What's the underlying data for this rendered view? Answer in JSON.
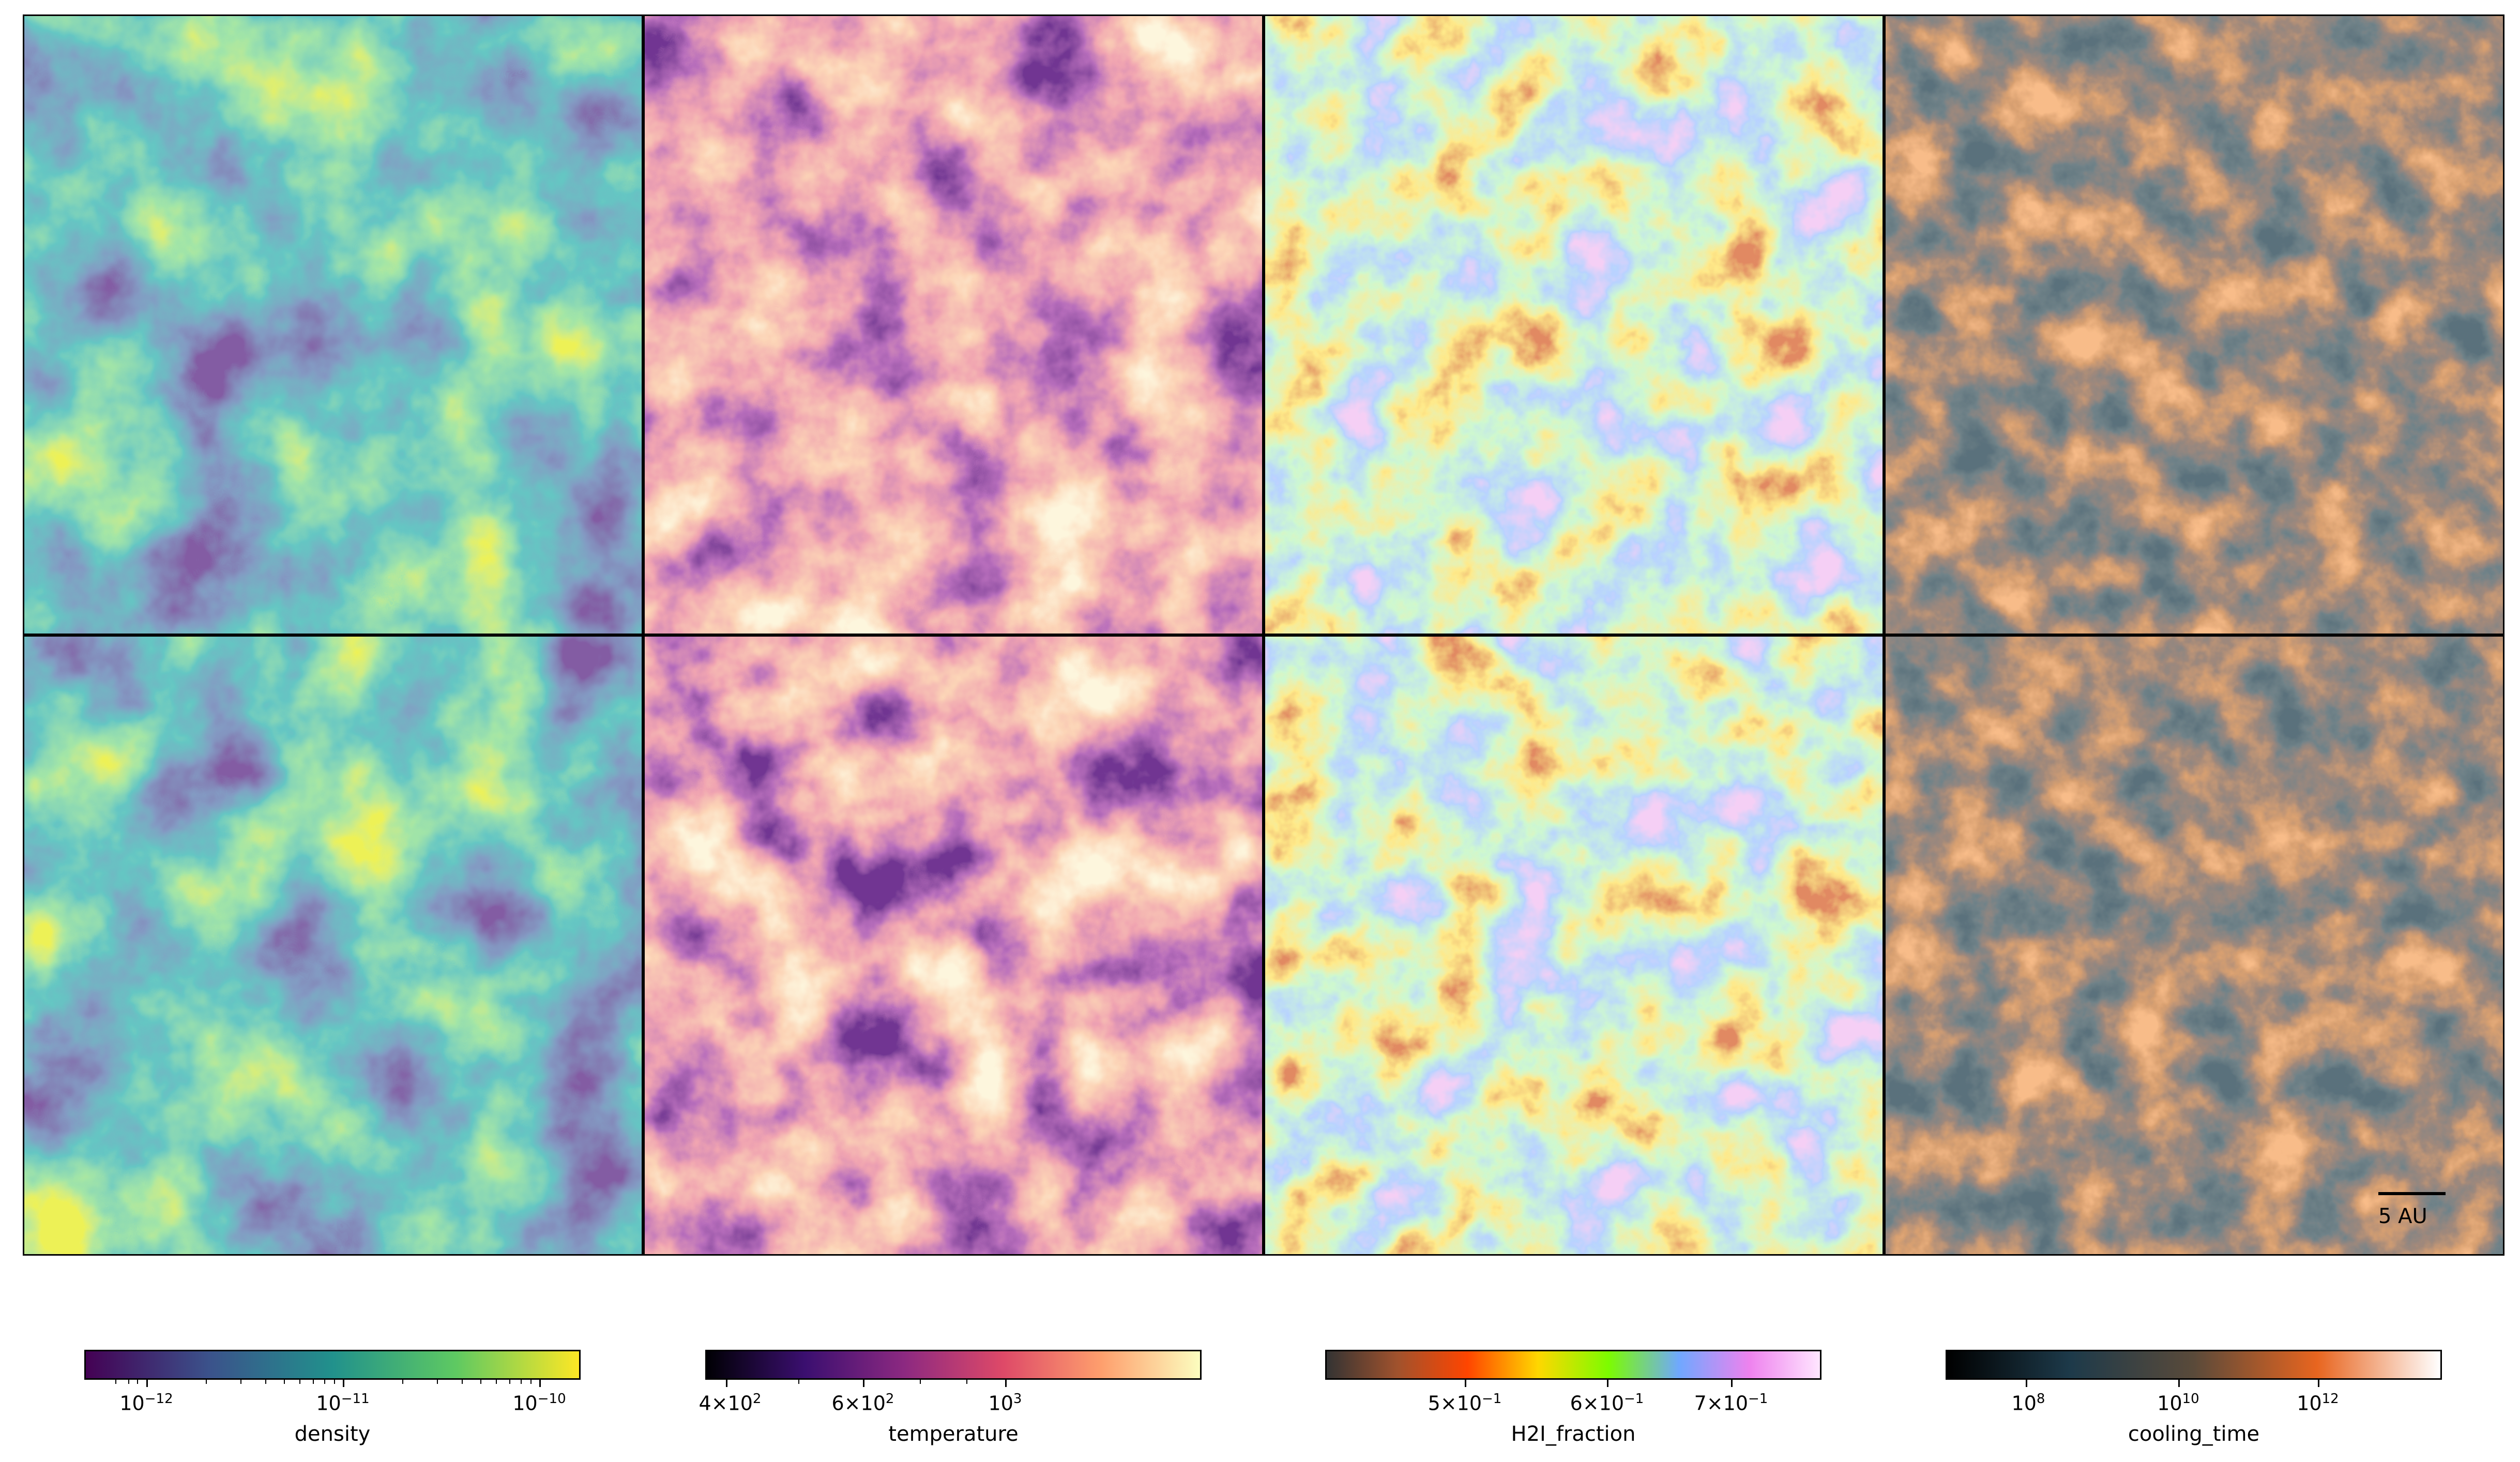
{
  "panels": [
    {
      "row": 0,
      "field": "density",
      "colormap": "viridis"
    },
    {
      "row": 0,
      "field": "temperature",
      "colormap": "magma"
    },
    {
      "row": 0,
      "field": "H2I_fraction",
      "colormap": "gist_ncar_r"
    },
    {
      "row": 0,
      "field": "cooling_time",
      "colormap": "cooling"
    },
    {
      "row": 1,
      "field": "density",
      "colormap": "viridis"
    },
    {
      "row": 1,
      "field": "temperature",
      "colormap": "magma"
    },
    {
      "row": 1,
      "field": "H2I_fraction",
      "colormap": "gist_ncar_r"
    },
    {
      "row": 1,
      "field": "cooling_time",
      "colormap": "cooling"
    }
  ],
  "scalebar": {
    "label": "5 AU"
  },
  "colorbars": [
    {
      "title": "density",
      "ticks": [
        "10^-12",
        "10^-11",
        "10^-10"
      ],
      "colors": [
        "#440154",
        "#3b528b",
        "#21918c",
        "#5ec962",
        "#fde725"
      ]
    },
    {
      "title": "temperature",
      "ticks": [
        "4×10^2",
        "6×10^2",
        "10^3"
      ],
      "colors": [
        "#000004",
        "#3b0f70",
        "#8c2981",
        "#de4968",
        "#fe9f6d",
        "#fcfdbf"
      ]
    },
    {
      "title": "H2I_fraction",
      "ticks": [
        "5×10^-1",
        "6×10^-1",
        "7×10^-1"
      ],
      "colors": [
        "#333333",
        "#a0522d",
        "#ff4500",
        "#ffd700",
        "#7cfc00",
        "#6fa8ff",
        "#ee82ee",
        "#ffe6ff"
      ]
    },
    {
      "title": "cooling_time",
      "ticks": [
        "10^8",
        "10^10",
        "10^12"
      ],
      "colors": [
        "#000000",
        "#1d3a4a",
        "#5a4a3a",
        "#e8651f",
        "#ffffff"
      ]
    }
  ],
  "colors": {
    "viridis": [
      "#3b1b5e",
      "#3b528b",
      "#21918c",
      "#5ec962",
      "#d8e219"
    ],
    "magma": [
      "#2a0a4a",
      "#7a2880",
      "#e06070",
      "#f8a878",
      "#fcebb8"
    ],
    "gist_ncar_r": [
      "#e8a0e8",
      "#7aa6ff",
      "#9ef0a0",
      "#ffd040",
      "#c04020"
    ],
    "cooling": [
      "#1a2a33",
      "#2a3a40",
      "#5a4033",
      "#b05a2a",
      "#f08040"
    ]
  }
}
